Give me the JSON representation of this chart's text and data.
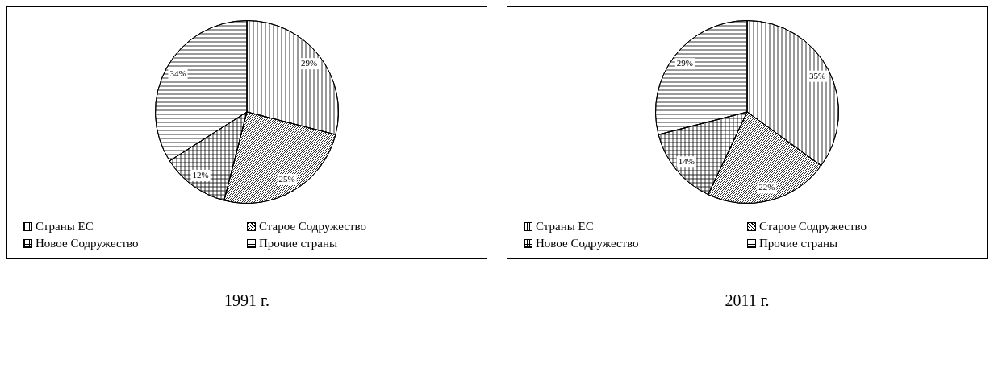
{
  "chart_data": [
    {
      "type": "pie",
      "title": "1991 г.",
      "categories": [
        "Страны ЕС",
        "Старое Содружество",
        "Новое Содружество",
        "Прочие страны"
      ],
      "values": [
        29,
        25,
        12,
        34
      ],
      "value_labels": [
        "29%",
        "25%",
        "12%",
        "34%"
      ],
      "colors": [
        "#ffffff",
        "#ffffff",
        "#ffffff",
        "#ffffff"
      ],
      "legend": "bottom"
    },
    {
      "type": "pie",
      "title": "2011 г.",
      "categories": [
        "Страны ЕС",
        "Старое Содружество",
        "Новое Содружество",
        "Прочие страны"
      ],
      "values": [
        35,
        22,
        14,
        29
      ],
      "value_labels": [
        "35%",
        "22%",
        "14%",
        "29%"
      ],
      "colors": [
        "#ffffff",
        "#ffffff",
        "#ffffff",
        "#ffffff"
      ],
      "legend": "bottom"
    }
  ]
}
